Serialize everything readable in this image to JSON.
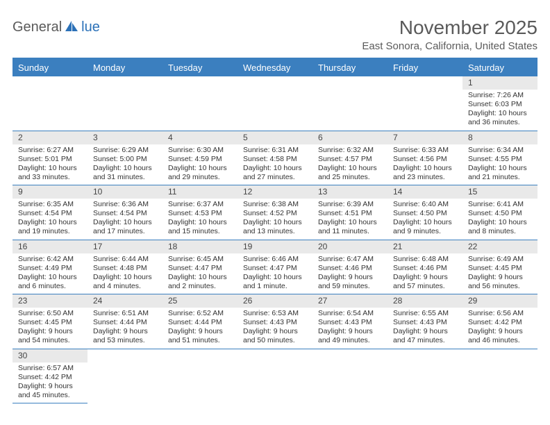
{
  "logo": {
    "text1": "General",
    "text2": "lue"
  },
  "title": "November 2025",
  "location": "East Sonora, California, United States",
  "colors": {
    "header_bg": "#3b7fbf",
    "header_text": "#ffffff",
    "border": "#3b7fbf",
    "daynum_bg": "#e9e9e9",
    "body_text": "#333333",
    "title_text": "#5a5a5a",
    "logo_blue": "#2b71b8"
  },
  "day_headers": [
    "Sunday",
    "Monday",
    "Tuesday",
    "Wednesday",
    "Thursday",
    "Friday",
    "Saturday"
  ],
  "weeks": [
    [
      null,
      null,
      null,
      null,
      null,
      null,
      {
        "day": "1",
        "sunrise": "Sunrise: 7:26 AM",
        "sunset": "Sunset: 6:03 PM",
        "daylight": "Daylight: 10 hours and 36 minutes."
      }
    ],
    [
      {
        "day": "2",
        "sunrise": "Sunrise: 6:27 AM",
        "sunset": "Sunset: 5:01 PM",
        "daylight": "Daylight: 10 hours and 33 minutes."
      },
      {
        "day": "3",
        "sunrise": "Sunrise: 6:29 AM",
        "sunset": "Sunset: 5:00 PM",
        "daylight": "Daylight: 10 hours and 31 minutes."
      },
      {
        "day": "4",
        "sunrise": "Sunrise: 6:30 AM",
        "sunset": "Sunset: 4:59 PM",
        "daylight": "Daylight: 10 hours and 29 minutes."
      },
      {
        "day": "5",
        "sunrise": "Sunrise: 6:31 AM",
        "sunset": "Sunset: 4:58 PM",
        "daylight": "Daylight: 10 hours and 27 minutes."
      },
      {
        "day": "6",
        "sunrise": "Sunrise: 6:32 AM",
        "sunset": "Sunset: 4:57 PM",
        "daylight": "Daylight: 10 hours and 25 minutes."
      },
      {
        "day": "7",
        "sunrise": "Sunrise: 6:33 AM",
        "sunset": "Sunset: 4:56 PM",
        "daylight": "Daylight: 10 hours and 23 minutes."
      },
      {
        "day": "8",
        "sunrise": "Sunrise: 6:34 AM",
        "sunset": "Sunset: 4:55 PM",
        "daylight": "Daylight: 10 hours and 21 minutes."
      }
    ],
    [
      {
        "day": "9",
        "sunrise": "Sunrise: 6:35 AM",
        "sunset": "Sunset: 4:54 PM",
        "daylight": "Daylight: 10 hours and 19 minutes."
      },
      {
        "day": "10",
        "sunrise": "Sunrise: 6:36 AM",
        "sunset": "Sunset: 4:54 PM",
        "daylight": "Daylight: 10 hours and 17 minutes."
      },
      {
        "day": "11",
        "sunrise": "Sunrise: 6:37 AM",
        "sunset": "Sunset: 4:53 PM",
        "daylight": "Daylight: 10 hours and 15 minutes."
      },
      {
        "day": "12",
        "sunrise": "Sunrise: 6:38 AM",
        "sunset": "Sunset: 4:52 PM",
        "daylight": "Daylight: 10 hours and 13 minutes."
      },
      {
        "day": "13",
        "sunrise": "Sunrise: 6:39 AM",
        "sunset": "Sunset: 4:51 PM",
        "daylight": "Daylight: 10 hours and 11 minutes."
      },
      {
        "day": "14",
        "sunrise": "Sunrise: 6:40 AM",
        "sunset": "Sunset: 4:50 PM",
        "daylight": "Daylight: 10 hours and 9 minutes."
      },
      {
        "day": "15",
        "sunrise": "Sunrise: 6:41 AM",
        "sunset": "Sunset: 4:50 PM",
        "daylight": "Daylight: 10 hours and 8 minutes."
      }
    ],
    [
      {
        "day": "16",
        "sunrise": "Sunrise: 6:42 AM",
        "sunset": "Sunset: 4:49 PM",
        "daylight": "Daylight: 10 hours and 6 minutes."
      },
      {
        "day": "17",
        "sunrise": "Sunrise: 6:44 AM",
        "sunset": "Sunset: 4:48 PM",
        "daylight": "Daylight: 10 hours and 4 minutes."
      },
      {
        "day": "18",
        "sunrise": "Sunrise: 6:45 AM",
        "sunset": "Sunset: 4:47 PM",
        "daylight": "Daylight: 10 hours and 2 minutes."
      },
      {
        "day": "19",
        "sunrise": "Sunrise: 6:46 AM",
        "sunset": "Sunset: 4:47 PM",
        "daylight": "Daylight: 10 hours and 1 minute."
      },
      {
        "day": "20",
        "sunrise": "Sunrise: 6:47 AM",
        "sunset": "Sunset: 4:46 PM",
        "daylight": "Daylight: 9 hours and 59 minutes."
      },
      {
        "day": "21",
        "sunrise": "Sunrise: 6:48 AM",
        "sunset": "Sunset: 4:46 PM",
        "daylight": "Daylight: 9 hours and 57 minutes."
      },
      {
        "day": "22",
        "sunrise": "Sunrise: 6:49 AM",
        "sunset": "Sunset: 4:45 PM",
        "daylight": "Daylight: 9 hours and 56 minutes."
      }
    ],
    [
      {
        "day": "23",
        "sunrise": "Sunrise: 6:50 AM",
        "sunset": "Sunset: 4:45 PM",
        "daylight": "Daylight: 9 hours and 54 minutes."
      },
      {
        "day": "24",
        "sunrise": "Sunrise: 6:51 AM",
        "sunset": "Sunset: 4:44 PM",
        "daylight": "Daylight: 9 hours and 53 minutes."
      },
      {
        "day": "25",
        "sunrise": "Sunrise: 6:52 AM",
        "sunset": "Sunset: 4:44 PM",
        "daylight": "Daylight: 9 hours and 51 minutes."
      },
      {
        "day": "26",
        "sunrise": "Sunrise: 6:53 AM",
        "sunset": "Sunset: 4:43 PM",
        "daylight": "Daylight: 9 hours and 50 minutes."
      },
      {
        "day": "27",
        "sunrise": "Sunrise: 6:54 AM",
        "sunset": "Sunset: 4:43 PM",
        "daylight": "Daylight: 9 hours and 49 minutes."
      },
      {
        "day": "28",
        "sunrise": "Sunrise: 6:55 AM",
        "sunset": "Sunset: 4:43 PM",
        "daylight": "Daylight: 9 hours and 47 minutes."
      },
      {
        "day": "29",
        "sunrise": "Sunrise: 6:56 AM",
        "sunset": "Sunset: 4:42 PM",
        "daylight": "Daylight: 9 hours and 46 minutes."
      }
    ],
    [
      {
        "day": "30",
        "sunrise": "Sunrise: 6:57 AM",
        "sunset": "Sunset: 4:42 PM",
        "daylight": "Daylight: 9 hours and 45 minutes."
      },
      null,
      null,
      null,
      null,
      null,
      null
    ]
  ]
}
